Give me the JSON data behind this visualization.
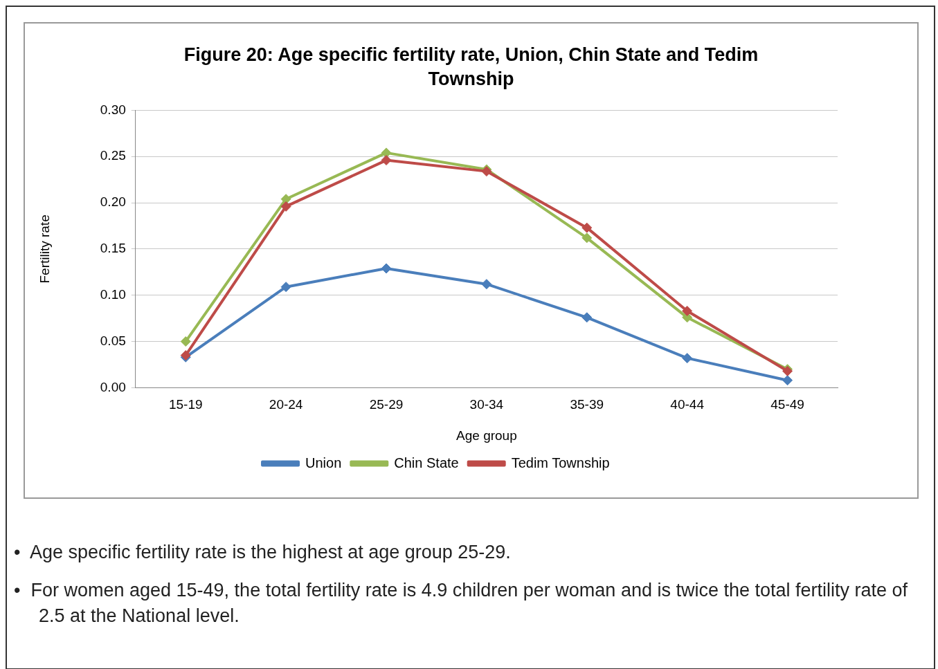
{
  "chart_data": {
    "type": "line",
    "title": "Figure 20: Age specific fertility rate, Union, Chin State and Tedim Township",
    "xlabel": "Age group",
    "ylabel": "Fertility rate",
    "categories": [
      "15-19",
      "20-24",
      "25-29",
      "30-34",
      "35-39",
      "40-44",
      "45-49"
    ],
    "series": [
      {
        "name": "Union",
        "color": "#4a7ebb",
        "values": [
          0.033,
          0.109,
          0.129,
          0.112,
          0.076,
          0.032,
          0.008
        ]
      },
      {
        "name": "Chin State",
        "color": "#98b954",
        "values": [
          0.05,
          0.204,
          0.254,
          0.236,
          0.162,
          0.076,
          0.02
        ]
      },
      {
        "name": "Tedim Township",
        "color": "#be4b48",
        "values": [
          0.035,
          0.196,
          0.246,
          0.234,
          0.173,
          0.083,
          0.018
        ]
      }
    ],
    "ylim": [
      0,
      0.3
    ],
    "yticks": [
      {
        "value": 0,
        "label": "0.00"
      },
      {
        "value": 0.05,
        "label": "0.05"
      },
      {
        "value": 0.1,
        "label": "0.10"
      },
      {
        "value": 0.15,
        "label": "0.15"
      },
      {
        "value": 0.2,
        "label": "0.20"
      },
      {
        "value": 0.25,
        "label": "0.25"
      },
      {
        "value": 0.3,
        "label": "0.30"
      }
    ],
    "grid": "y",
    "legend": "bottom",
    "marker": "diamond",
    "line_style": "solid",
    "annotations": [
      "•  Age specific fertility rate is the highest at age group 25-29.",
      "•  For women aged 15-49, the total fertility rate is 4.9 children per woman and is twice the total fertility rate of 2.5 at the National level."
    ]
  }
}
